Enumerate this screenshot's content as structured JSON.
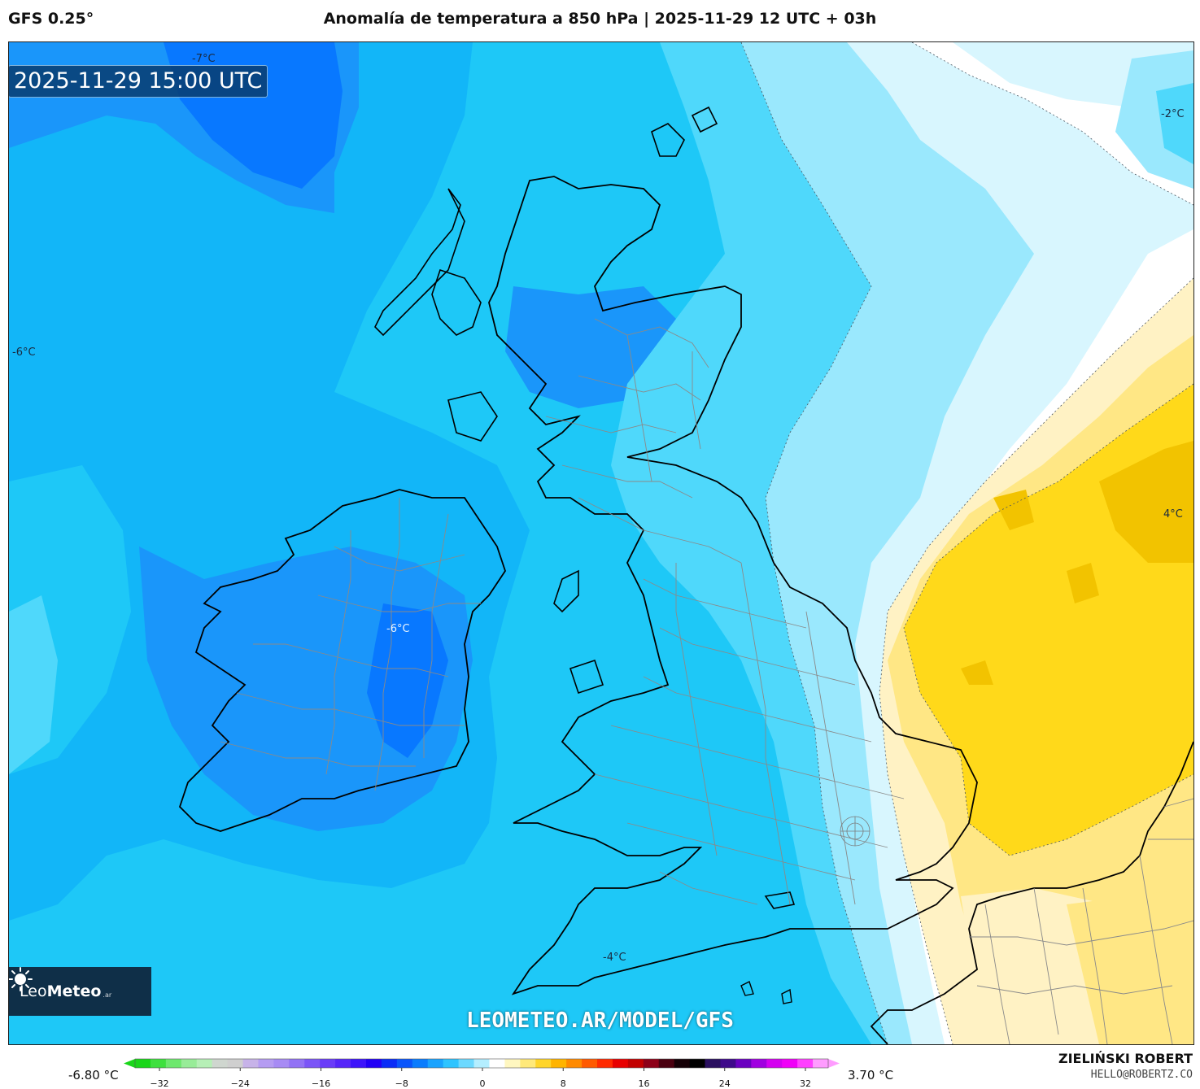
{
  "header": {
    "model": "GFS 0.25°",
    "title": "Anomalía de temperatura a 850 hPa | 2025-11-29 12 UTC + 03h"
  },
  "map": {
    "timestamp": "2025-11-29 15:00 UTC",
    "watermark": "LEOMETEO.AR/MODEL/GFS",
    "brand": {
      "name_light": "Leo",
      "name_bold": "Meteo",
      "tld": ".ar"
    },
    "contour_labels": [
      {
        "text": "-7°C"
      },
      {
        "text": "-6°C"
      },
      {
        "text": "-6°C"
      },
      {
        "text": "-2°C"
      },
      {
        "text": "4°C"
      },
      {
        "text": "-4°C"
      }
    ],
    "colors": {
      "minus7": "#0878ff",
      "minus6": "#1a96fa",
      "minus5": "#12b6f8",
      "minus4": "#1ec8f7",
      "minus3": "#4fd8fb",
      "minus2": "#9ae8fd",
      "minus1": "#d8f6fe",
      "zero": "#ffffff",
      "plus1": "#fff2c4",
      "plus2": "#ffe785",
      "plus3": "#ffd91a",
      "plus4": "#f2c300",
      "coast": "#000000",
      "border": "#8a8a8a"
    }
  },
  "scale": {
    "min_label": "-6.80 °C",
    "max_label": "3.70 °C",
    "ticks": [
      "−32",
      "−24",
      "−16",
      "−8",
      "0",
      "8",
      "16",
      "24",
      "32"
    ],
    "colors": [
      "#19d619",
      "#3ee03e",
      "#6ee86e",
      "#98ec98",
      "#b6efb6",
      "#cfd6cf",
      "#cfcfcf",
      "#c7b3e8",
      "#b59cf2",
      "#a78bf4",
      "#9272f5",
      "#7b55f7",
      "#6a3cf8",
      "#5626f9",
      "#3d14fa",
      "#2200f6",
      "#0a2cf7",
      "#0a55fb",
      "#0a7cfd",
      "#1aa3fe",
      "#2ec4ff",
      "#6cd9ff",
      "#b4eeff",
      "#ffffff",
      "#fff7c0",
      "#ffe97a",
      "#ffd52a",
      "#ffb400",
      "#ff8a00",
      "#ff5a00",
      "#ff2a00",
      "#e80000",
      "#c20000",
      "#8d0018",
      "#4a0010",
      "#150006",
      "#000000",
      "#2a1060",
      "#3e0a8a",
      "#6a00c0",
      "#a000e0",
      "#d400f0",
      "#f000f8",
      "#ff40ff",
      "#ff9cff"
    ],
    "credit_name": "ZIELIŃSKI ROBERT",
    "credit_mail": "HELLO@ROBERTZ.CO"
  }
}
